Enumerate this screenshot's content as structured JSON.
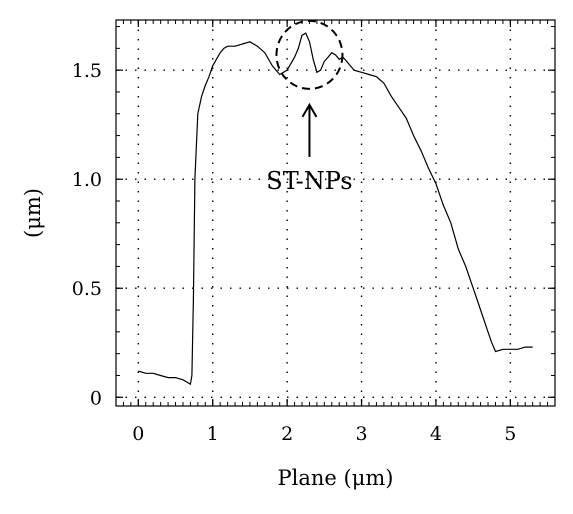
{
  "chart_data": {
    "type": "line",
    "title": "",
    "xlabel": "Plane (μm)",
    "ylabel": "(μm)",
    "xlim": [
      -0.3,
      5.6
    ],
    "ylim": [
      -0.04,
      1.73
    ],
    "x_ticks": [
      "0",
      "1",
      "2",
      "3",
      "4",
      "5"
    ],
    "y_ticks": [
      "0",
      "0.5",
      "1.0",
      "1.5"
    ],
    "grid": true,
    "legend": "none",
    "series": [
      {
        "x": [
          0,
          0.1,
          0.2,
          0.3,
          0.4,
          0.5,
          0.6,
          0.7,
          0.72,
          0.74,
          0.76,
          0.8,
          0.85,
          0.9,
          0.95,
          1.0,
          1.05,
          1.1,
          1.15,
          1.2,
          1.3,
          1.4,
          1.5,
          1.6,
          1.7,
          1.8,
          1.9,
          2.0,
          2.1,
          2.15,
          2.2,
          2.25,
          2.3,
          2.35,
          2.4,
          2.45,
          2.5,
          2.55,
          2.6,
          2.65,
          2.7,
          2.75,
          2.8,
          2.9,
          3.0,
          3.1,
          3.2,
          3.3,
          3.4,
          3.5,
          3.6,
          3.7,
          3.8,
          3.9,
          4.0,
          4.1,
          4.2,
          4.3,
          4.4,
          4.5,
          4.6,
          4.7,
          4.75,
          4.8,
          4.9,
          5.0,
          5.1,
          5.2,
          5.3
        ],
        "y": [
          0.12,
          0.11,
          0.11,
          0.1,
          0.09,
          0.09,
          0.08,
          0.06,
          0.1,
          0.45,
          1.0,
          1.3,
          1.38,
          1.43,
          1.47,
          1.52,
          1.55,
          1.58,
          1.6,
          1.61,
          1.61,
          1.62,
          1.63,
          1.61,
          1.58,
          1.52,
          1.48,
          1.5,
          1.56,
          1.6,
          1.66,
          1.67,
          1.63,
          1.55,
          1.49,
          1.5,
          1.54,
          1.56,
          1.58,
          1.57,
          1.55,
          1.56,
          1.54,
          1.5,
          1.49,
          1.48,
          1.47,
          1.44,
          1.38,
          1.33,
          1.28,
          1.2,
          1.13,
          1.05,
          0.98,
          0.88,
          0.8,
          0.68,
          0.6,
          0.5,
          0.4,
          0.3,
          0.25,
          0.21,
          0.22,
          0.22,
          0.22,
          0.23,
          0.23
        ]
      }
    ],
    "annotations": [
      {
        "text": "ST-NPs",
        "target_x": 2.3,
        "target_y": 1.57,
        "shape": "dashed-circle",
        "pointer": "arrow"
      }
    ]
  }
}
